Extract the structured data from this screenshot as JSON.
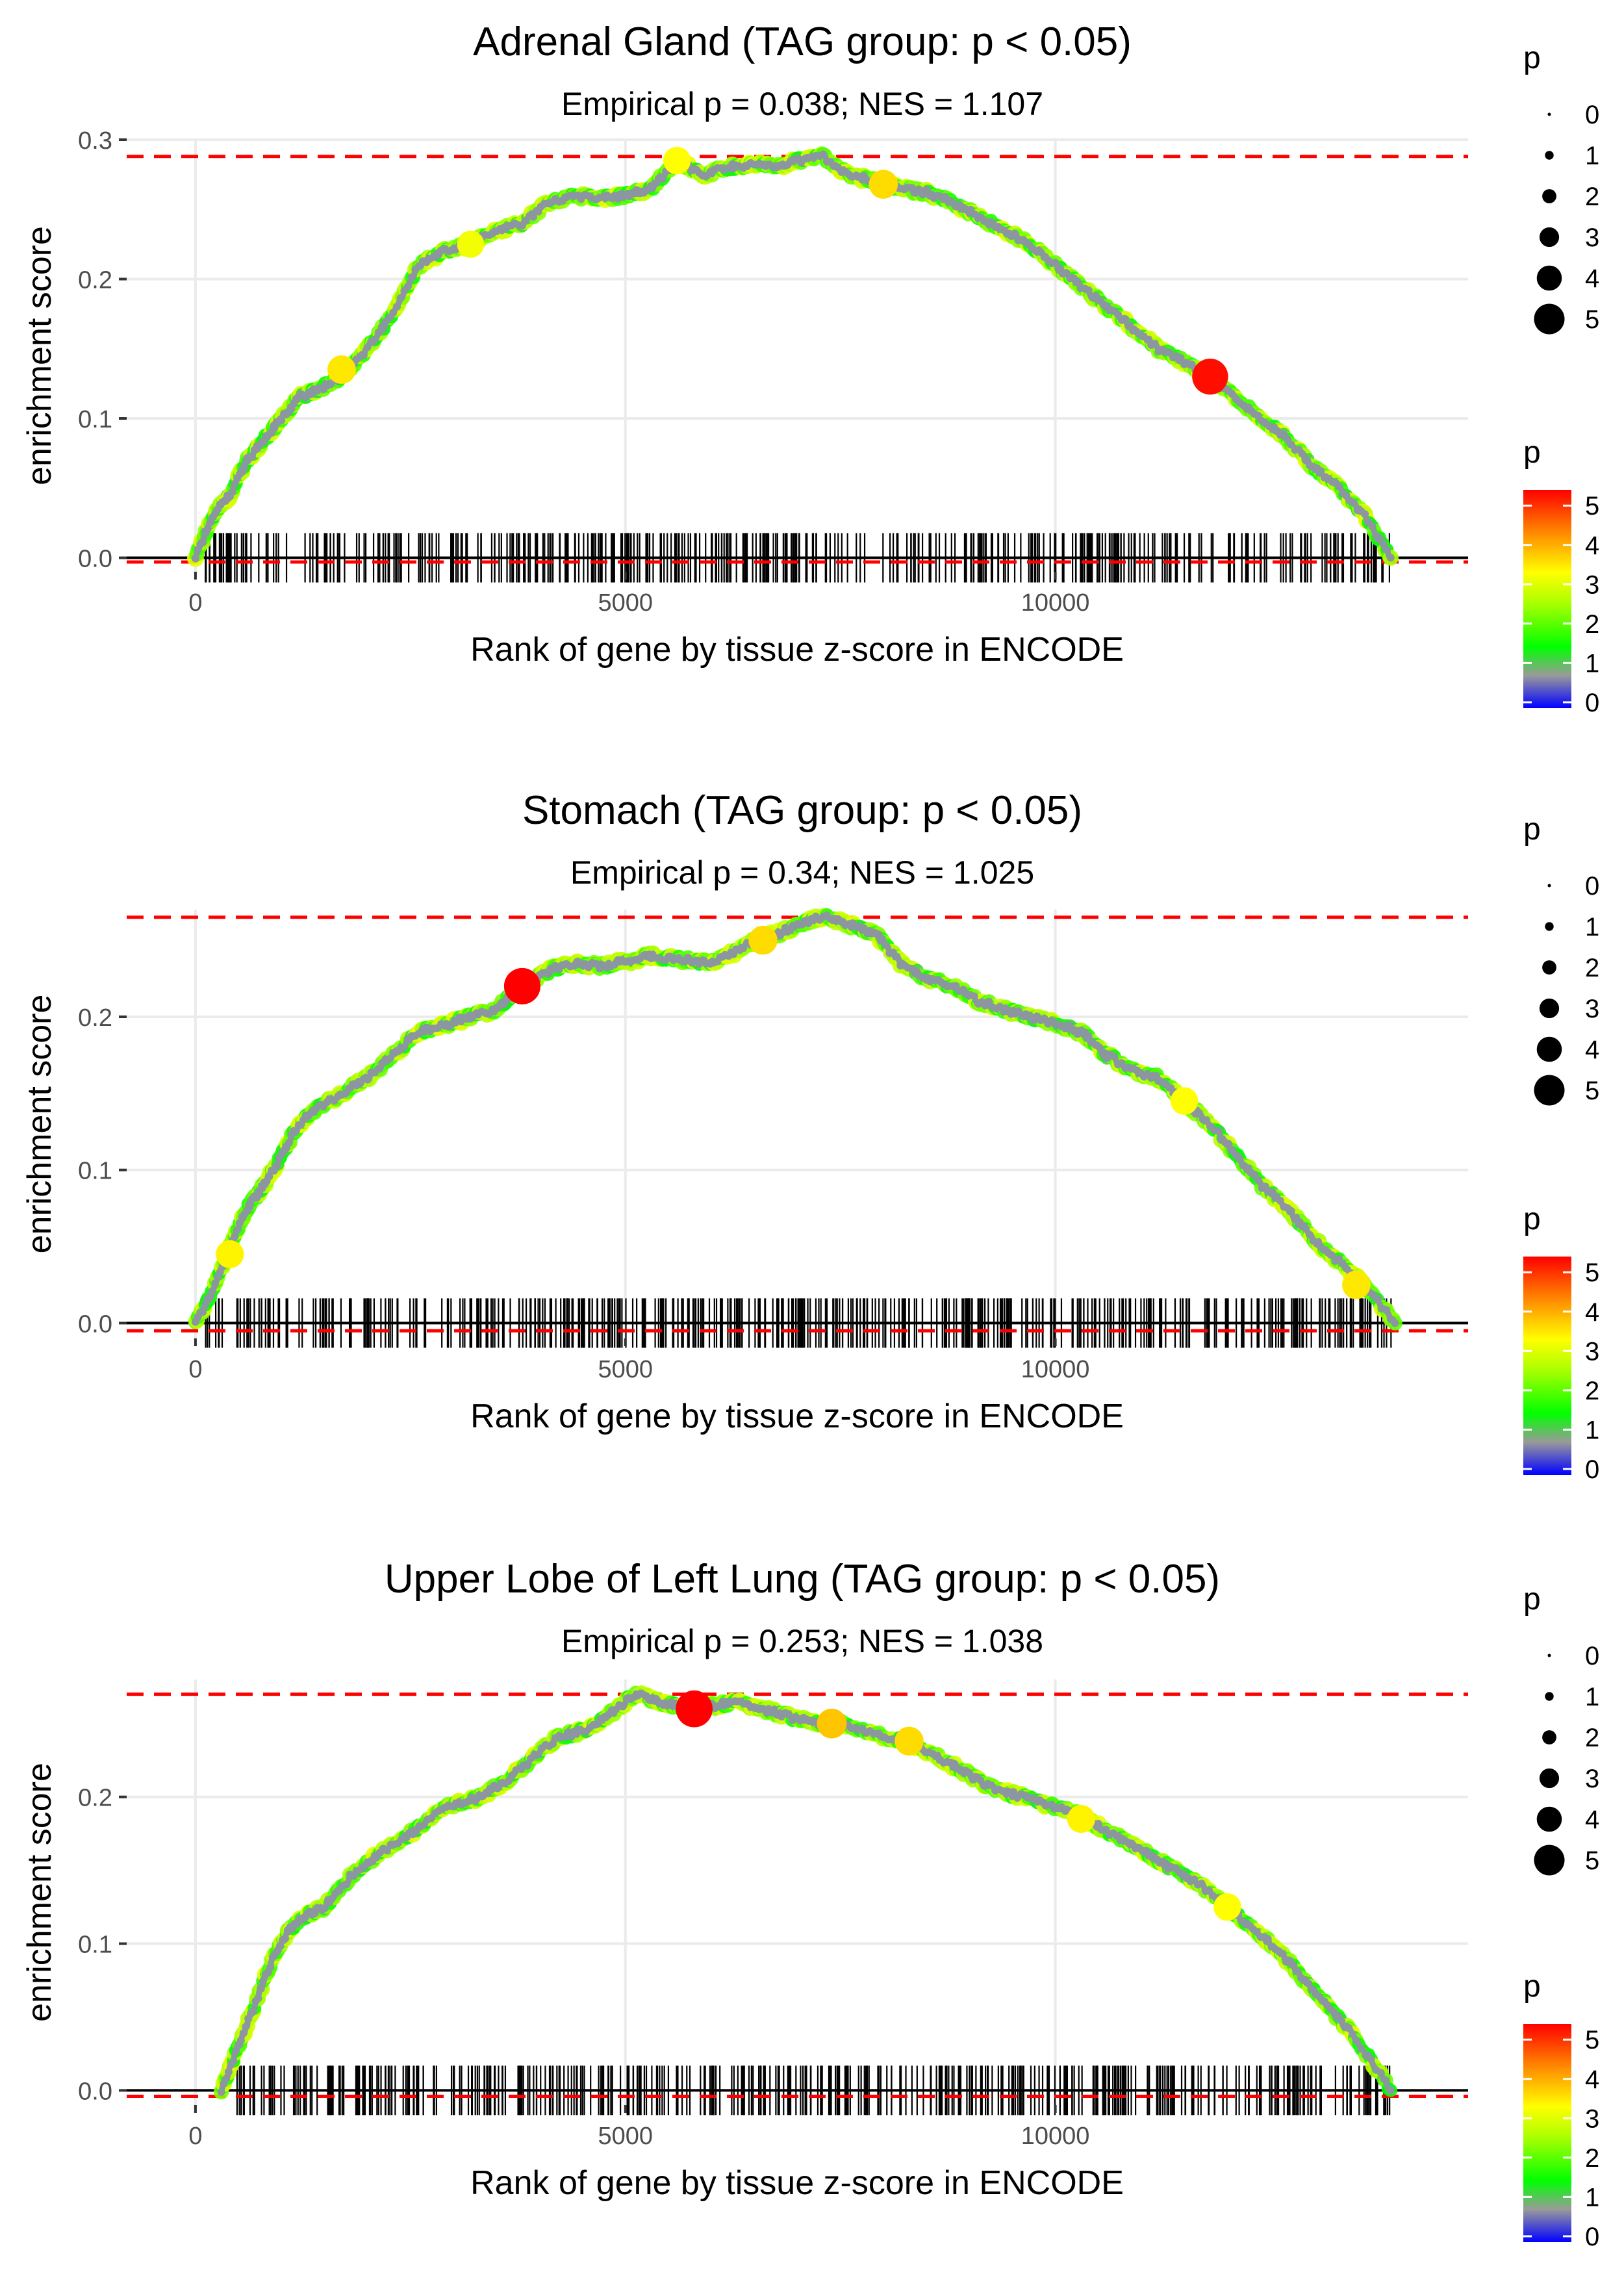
{
  "chart_data": [
    {
      "type": "line",
      "title": "Adrenal Gland (TAG group: p < 0.05)",
      "subtitle": "Empirical p = 0.038; NES = 1.107",
      "xlabel": "Rank of gene by tissue z-score in ENCODE",
      "ylabel": "enrichment score",
      "xlim": [
        -800,
        14800
      ],
      "ylim": [
        -0.01,
        0.3
      ],
      "xticks": [
        0,
        5000,
        10000
      ],
      "xtick_labels": [
        "0",
        "5000",
        "10000"
      ],
      "yticks": [
        0.0,
        0.1,
        0.2,
        0.3
      ],
      "ytick_labels": [
        "0.0",
        "0.1",
        "0.2",
        "0.3"
      ],
      "max_es": 0.288,
      "min_es": -0.003,
      "peak_rank": 7300,
      "last_rank": 13900,
      "curve": {
        "x": [
          0,
          200,
          400,
          600,
          800,
          1000,
          1200,
          1400,
          1700,
          2000,
          2300,
          2600,
          2900,
          3200,
          3500,
          3800,
          4100,
          4400,
          4700,
          5000,
          5300,
          5600,
          5900,
          6200,
          6500,
          6800,
          7000,
          7300,
          7600,
          7900,
          8200,
          8500,
          8800,
          9100,
          9400,
          9700,
          10000,
          10300,
          10600,
          10900,
          11200,
          11500,
          11800,
          12100,
          12400,
          12700,
          13000,
          13300,
          13600,
          13900
        ],
        "y": [
          0.0,
          0.03,
          0.045,
          0.07,
          0.085,
          0.1,
          0.115,
          0.12,
          0.13,
          0.15,
          0.175,
          0.21,
          0.22,
          0.225,
          0.235,
          0.24,
          0.255,
          0.26,
          0.258,
          0.26,
          0.265,
          0.285,
          0.275,
          0.28,
          0.283,
          0.28,
          0.285,
          0.288,
          0.275,
          0.27,
          0.265,
          0.262,
          0.255,
          0.245,
          0.235,
          0.225,
          0.21,
          0.195,
          0.18,
          0.165,
          0.15,
          0.14,
          0.13,
          0.115,
          0.1,
          0.085,
          0.065,
          0.05,
          0.03,
          0.0
        ]
      },
      "highlight_points": [
        {
          "x": 11800,
          "y": 0.13,
          "p": 5.2
        },
        {
          "x": 1700,
          "y": 0.135,
          "p": 3.5
        },
        {
          "x": 5600,
          "y": 0.285,
          "p": 3.3
        },
        {
          "x": 8000,
          "y": 0.268,
          "p": 3.6
        },
        {
          "x": 3200,
          "y": 0.225,
          "p": 3.2
        }
      ],
      "rug_count": 430
    },
    {
      "type": "line",
      "title": "Stomach (TAG group: p < 0.05)",
      "subtitle": "Empirical p = 0.34; NES = 1.025",
      "xlabel": "Rank of gene by tissue z-score in ENCODE",
      "ylabel": "enrichment score",
      "xlim": [
        -800,
        14800
      ],
      "ylim": [
        -0.01,
        0.27
      ],
      "xticks": [
        0,
        5000,
        10000
      ],
      "xtick_labels": [
        "0",
        "5000",
        "10000"
      ],
      "yticks": [
        0.0,
        0.1,
        0.2
      ],
      "ytick_labels": [
        "0.0",
        "0.1",
        "0.2"
      ],
      "max_es": 0.265,
      "min_es": -0.005,
      "peak_rank": 7300,
      "last_rank": 13950,
      "curve": {
        "x": [
          0,
          200,
          400,
          600,
          800,
          1000,
          1200,
          1400,
          1700,
          2000,
          2300,
          2600,
          2900,
          3200,
          3500,
          3800,
          4100,
          4400,
          4700,
          5000,
          5300,
          5600,
          5900,
          6200,
          6500,
          6800,
          7000,
          7300,
          7600,
          7900,
          8200,
          8500,
          8800,
          9100,
          9400,
          9700,
          10000,
          10300,
          10600,
          10900,
          11200,
          11500,
          11800,
          12100,
          12400,
          12700,
          13000,
          13300,
          13600,
          13950
        ],
        "y": [
          0.0,
          0.02,
          0.05,
          0.075,
          0.09,
          0.11,
          0.13,
          0.14,
          0.15,
          0.16,
          0.175,
          0.19,
          0.195,
          0.2,
          0.205,
          0.22,
          0.23,
          0.235,
          0.233,
          0.236,
          0.24,
          0.238,
          0.235,
          0.24,
          0.25,
          0.255,
          0.26,
          0.265,
          0.26,
          0.255,
          0.235,
          0.225,
          0.22,
          0.21,
          0.205,
          0.2,
          0.195,
          0.19,
          0.175,
          0.165,
          0.16,
          0.145,
          0.13,
          0.11,
          0.09,
          0.075,
          0.055,
          0.04,
          0.025,
          0.0
        ]
      },
      "highlight_points": [
        {
          "x": 3800,
          "y": 0.22,
          "p": 5.3
        },
        {
          "x": 6600,
          "y": 0.25,
          "p": 3.6
        },
        {
          "x": 400,
          "y": 0.045,
          "p": 3.4
        },
        {
          "x": 13500,
          "y": 0.025,
          "p": 3.5
        },
        {
          "x": 11500,
          "y": 0.145,
          "p": 3.3
        }
      ],
      "rug_count": 460
    },
    {
      "type": "line",
      "title": "Upper Lobe of Left Lung (TAG group: p < 0.05)",
      "subtitle": "Empirical p = 0.253; NES = 1.038",
      "xlabel": "Rank of gene by tissue z-score in ENCODE",
      "ylabel": "enrichment score",
      "xlim": [
        -800,
        14800
      ],
      "ylim": [
        -0.01,
        0.28
      ],
      "xticks": [
        0,
        5000,
        10000
      ],
      "xtick_labels": [
        "0",
        "5000",
        "10000"
      ],
      "yticks": [
        0.0,
        0.1,
        0.2
      ],
      "ytick_labels": [
        "0.0",
        "0.1",
        "0.2"
      ],
      "max_es": 0.27,
      "min_es": -0.004,
      "peak_rank": 5100,
      "last_rank": 13900,
      "curve": {
        "x": [
          300,
          500,
          700,
          900,
          1100,
          1300,
          1500,
          1800,
          2100,
          2400,
          2700,
          3000,
          3300,
          3600,
          3900,
          4200,
          4500,
          4800,
          5100,
          5400,
          5700,
          6000,
          6300,
          6600,
          6900,
          7200,
          7500,
          7800,
          8100,
          8400,
          8700,
          9000,
          9300,
          9600,
          9900,
          10200,
          10500,
          10800,
          11100,
          11400,
          11700,
          12000,
          12300,
          12600,
          12900,
          13200,
          13500,
          13900
        ],
        "y": [
          0.0,
          0.03,
          0.06,
          0.09,
          0.11,
          0.12,
          0.125,
          0.145,
          0.16,
          0.17,
          0.185,
          0.195,
          0.2,
          0.21,
          0.225,
          0.24,
          0.245,
          0.255,
          0.27,
          0.265,
          0.26,
          0.262,
          0.265,
          0.26,
          0.255,
          0.25,
          0.25,
          0.245,
          0.24,
          0.235,
          0.225,
          0.215,
          0.205,
          0.2,
          0.195,
          0.19,
          0.18,
          0.17,
          0.16,
          0.15,
          0.14,
          0.125,
          0.11,
          0.095,
          0.075,
          0.055,
          0.035,
          0.0
        ]
      },
      "highlight_points": [
        {
          "x": 5800,
          "y": 0.26,
          "p": 5.4
        },
        {
          "x": 7400,
          "y": 0.25,
          "p": 3.8
        },
        {
          "x": 8300,
          "y": 0.238,
          "p": 3.6
        },
        {
          "x": 10300,
          "y": 0.185,
          "p": 3.4
        },
        {
          "x": 12000,
          "y": 0.125,
          "p": 3.3
        }
      ],
      "rug_count": 440
    }
  ],
  "legend": {
    "size_title": "p",
    "size_labels": [
      "0",
      "1",
      "2",
      "3",
      "4",
      "5"
    ],
    "color_title": "p",
    "color_labels": [
      "0",
      "1",
      "2",
      "3",
      "4",
      "5"
    ]
  },
  "colors": {
    "curve": "#8c96a0",
    "dashed": "#ff0000",
    "grid": "#ebebeb",
    "text": "#000000",
    "tick_text": "#4d4d4d",
    "gradient": [
      "#0000ff",
      "#7f7fff",
      "#999999",
      "#00ff00",
      "#aaff00",
      "#ffff00",
      "#ff8000",
      "#ff0000"
    ]
  }
}
